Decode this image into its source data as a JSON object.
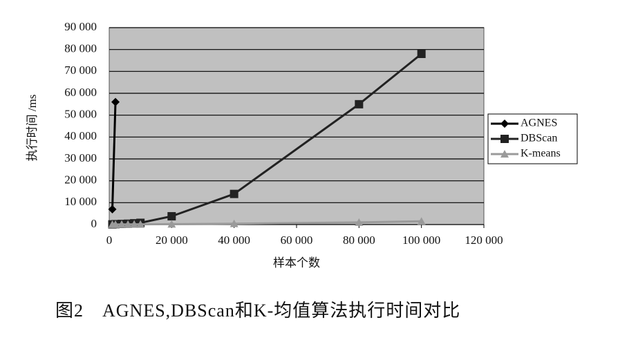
{
  "chart_data": {
    "type": "line",
    "caption": "图2　AGNES,DBScan和K-均值算法执行时间对比",
    "x_label": "样本个数",
    "y_label": "执行时间 /ms",
    "xlim": [
      0,
      120000
    ],
    "ylim": [
      0,
      90000
    ],
    "xticks": [
      0,
      {
        "value": 20000,
        "label": "20 000"
      },
      {
        "value": 40000,
        "label": "40 000"
      },
      {
        "value": 60000,
        "label": "60 000"
      },
      {
        "value": 80000,
        "label": "80 000"
      },
      {
        "value": 100000,
        "label": "100 000"
      },
      {
        "value": 120000,
        "label": "120 000"
      }
    ],
    "yticks": [
      0,
      {
        "value": 10000,
        "label": "10 000"
      },
      {
        "value": 20000,
        "label": "20 000"
      },
      {
        "value": 30000,
        "label": "30 000"
      },
      {
        "value": 40000,
        "label": "40 000"
      },
      {
        "value": 50000,
        "label": "50 000"
      },
      {
        "value": 60000,
        "label": "60 000"
      },
      {
        "value": 70000,
        "label": "70 000"
      },
      {
        "value": 80000,
        "label": "80 000"
      },
      {
        "value": 90000,
        "label": "90 000"
      }
    ],
    "grid": true,
    "background": "#c0c0c0",
    "series": [
      {
        "name": "AGNES",
        "color": "#000000",
        "marker": "diamond",
        "x": [
          1000,
          2000
        ],
        "values": [
          7000,
          56000
        ]
      },
      {
        "name": "DBScan",
        "color": "#222222",
        "marker": "square",
        "x": [
          1000,
          2000,
          4000,
          6000,
          8000,
          10000,
          20000,
          40000,
          80000,
          100000
        ],
        "values": [
          100,
          200,
          300,
          400,
          600,
          800,
          3800,
          14000,
          55000,
          78000
        ]
      },
      {
        "name": "K-means",
        "color": "#9a9a9a",
        "marker": "triangle",
        "x": [
          1000,
          2000,
          4000,
          6000,
          8000,
          10000,
          20000,
          40000,
          80000,
          100000
        ],
        "values": [
          20,
          40,
          60,
          80,
          100,
          120,
          200,
          400,
          1000,
          1500
        ]
      }
    ]
  }
}
